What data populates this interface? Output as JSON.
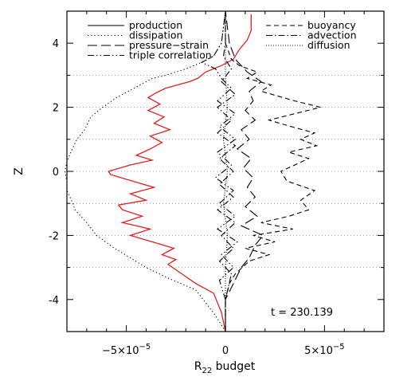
{
  "chart_data": {
    "type": "line",
    "xlabel": "R",
    "xlabel_sub": "22",
    "xlabel_suffix": " budget",
    "ylabel": "Z",
    "xlim": [
      -8e-05,
      8e-05
    ],
    "ylim": [
      -5,
      5
    ],
    "x_ticks": [
      {
        "value": -5e-05,
        "mantissa": "−5×10",
        "exp": "−5"
      },
      {
        "value": 0,
        "mantissa": "0",
        "exp": ""
      },
      {
        "value": 5e-05,
        "mantissa": "5×10",
        "exp": "−5"
      }
    ],
    "y_ticks": [
      -4,
      -2,
      0,
      2,
      4
    ],
    "dotted_gridlines_y": [
      -3,
      -2,
      -1,
      0,
      1,
      2,
      3
    ],
    "annotation": "t = 230.139",
    "legend_left": [
      "production",
      "dissipation",
      "pressure−strain",
      "triple correlation"
    ],
    "legend_right": [
      "buoyancy",
      "advection",
      "diffusion"
    ],
    "series": [
      {
        "name": "dissipation",
        "style": "dotted",
        "color": "#000000",
        "y": [
          -5,
          -4.5,
          -3.7,
          -3.3,
          -3.0,
          -2.7,
          -2.4,
          -2.0,
          -1.6,
          -1.2,
          -1.0,
          -0.6,
          -0.3,
          0.0,
          0.3,
          0.6,
          1.0,
          1.3,
          1.7,
          2.0,
          2.3,
          2.6,
          2.9,
          3.0,
          3.2,
          3.4,
          3.6,
          4.0,
          5.0
        ],
        "x": [
          0.0,
          -5e-06,
          -1.5e-05,
          -3e-05,
          -4e-05,
          -4.8e-05,
          -5.6e-05,
          -6.5e-05,
          -7e-05,
          -7.6e-05,
          -7.7e-05,
          -8e-05,
          -8e-05,
          -8.1e-05,
          -8e-05,
          -7.8e-05,
          -7.5e-05,
          -7.1e-05,
          -6.8e-05,
          -6.2e-05,
          -5.5e-05,
          -4.6e-05,
          -3.7e-05,
          -3e-05,
          -2e-05,
          -1.2e-05,
          -6e-06,
          -2e-06,
          0.0
        ]
      },
      {
        "name": "production",
        "style": "solid",
        "color": "#e02020",
        "y": [
          -5,
          -4.4,
          -3.8,
          -3.5,
          -3.2,
          -2.9,
          -2.75,
          -2.6,
          -2.4,
          -2.2,
          -2.0,
          -1.8,
          -1.6,
          -1.4,
          -1.2,
          -1.05,
          -0.9,
          -0.7,
          -0.5,
          -0.3,
          -0.1,
          0.0,
          0.2,
          0.35,
          0.5,
          0.7,
          0.9,
          1.1,
          1.3,
          1.5,
          1.7,
          1.9,
          2.1,
          2.3,
          2.45,
          2.6,
          2.8,
          2.9,
          3.1,
          3.3,
          3.5,
          3.8,
          4.1,
          4.4,
          4.7,
          4.9
        ],
        "x": [
          0.0,
          -2e-06,
          -6e-06,
          -1.5e-05,
          -2.2e-05,
          -2.9e-05,
          -2.5e-05,
          -3.2e-05,
          -2.6e-05,
          -3.7e-05,
          -4.8e-05,
          -3.8e-05,
          -5.2e-05,
          -4.2e-05,
          -5.2e-05,
          -5.4e-05,
          -4e-05,
          -4.8e-05,
          -3.6e-05,
          -4.7e-05,
          -5.8e-05,
          -5.9e-05,
          -4.8e-05,
          -3.7e-05,
          -4.5e-05,
          -3.8e-05,
          -3.2e-05,
          -3.8e-05,
          -2.8e-05,
          -3.6e-05,
          -3.1e-05,
          -3.9e-05,
          -3.3e-05,
          -3.9e-05,
          -3.5e-05,
          -3e-05,
          -1.8e-05,
          -1.4e-05,
          -1e-05,
          -2e-06,
          4e-06,
          7e-06,
          1.1e-05,
          1.3e-05,
          1.3e-05,
          1.3e-05
        ]
      },
      {
        "name": "buoyancy",
        "style": "dashed",
        "color": "#000000",
        "y": [
          -5,
          -4.0,
          -3.5,
          -3.2,
          -2.8,
          -2.6,
          -2.4,
          -2.2,
          -2.0,
          -1.8,
          -1.6,
          -1.4,
          -1.2,
          -0.9,
          -0.6,
          -0.3,
          0.0,
          0.4,
          0.6,
          0.8,
          1.0,
          1.2,
          1.4,
          1.6,
          1.8,
          2.0,
          2.2,
          2.5,
          2.7,
          2.9,
          3.1,
          3.3,
          3.5,
          4.0,
          5.0
        ],
        "x": [
          0.0,
          0.0,
          2e-06,
          5e-06,
          1.2e-05,
          2.2e-05,
          1e-05,
          2.5e-05,
          1.4e-05,
          3.4e-05,
          1.8e-05,
          3.2e-05,
          4.2e-05,
          3.8e-05,
          4.5e-05,
          3.1e-05,
          2.8e-05,
          4.2e-05,
          3.2e-05,
          4.6e-05,
          3.8e-05,
          4.5e-05,
          3.3e-05,
          2.2e-05,
          3.5e-05,
          4.8e-05,
          3.5e-05,
          1.8e-05,
          2.3e-05,
          1.1e-05,
          1.6e-05,
          7e-06,
          3e-06,
          0.0,
          0.0
        ]
      },
      {
        "name": "pressure−strain",
        "style": "longdash",
        "color": "#000000",
        "y": [
          -5,
          -4.0,
          -3.5,
          -3.0,
          -2.7,
          -2.3,
          -2.0,
          -1.7,
          -1.4,
          -1.1,
          -0.8,
          -0.5,
          -0.2,
          0.1,
          0.4,
          0.7,
          1.0,
          1.3,
          1.6,
          1.9,
          2.2,
          2.5,
          2.8,
          3.1,
          3.5,
          4.0,
          5.0
        ],
        "x": [
          0.0,
          0.0,
          4e-06,
          8e-06,
          1.2e-05,
          1.5e-05,
          1.9e-05,
          8e-06,
          1.6e-05,
          1e-05,
          1.5e-05,
          1.1e-05,
          1.4e-05,
          9e-06,
          1.3e-05,
          6e-06,
          1.2e-05,
          8e-06,
          1.5e-05,
          1e-05,
          1.4e-05,
          1.2e-05,
          1.8e-05,
          1.1e-05,
          5e-06,
          2e-06,
          0.0
        ]
      },
      {
        "name": "triple correlation",
        "style": "dashdotdot",
        "color": "#000000",
        "y": [
          -5,
          -4.0,
          -3.4,
          -3.0,
          -2.6,
          -2.2,
          -1.8,
          -1.4,
          -1.0,
          -0.6,
          -0.2,
          0.2,
          0.6,
          1.0,
          1.4,
          1.8,
          2.2,
          2.6,
          2.9,
          3.2,
          3.4,
          3.6,
          4.0,
          5.0
        ],
        "x": [
          0.0,
          0.0,
          -3e-06,
          4e-06,
          -2e-06,
          6e-06,
          -4e-06,
          5e-06,
          -3e-06,
          4e-06,
          -5e-06,
          3e-06,
          -4e-06,
          5e-06,
          -3e-06,
          5e-06,
          -4e-06,
          3e-06,
          -2e-06,
          -5e-06,
          -1.2e-05,
          -6e-06,
          -2e-06,
          0.0
        ]
      },
      {
        "name": "advection",
        "style": "dashdot",
        "color": "#000000",
        "y": [
          -5,
          -4.0,
          -3.2,
          -2.8,
          -2.4,
          -2.0,
          -1.6,
          -1.2,
          -0.8,
          -0.4,
          0.0,
          0.4,
          0.8,
          1.2,
          1.6,
          2.0,
          2.4,
          2.8,
          3.2,
          3.6,
          4.0,
          5.0
        ],
        "x": [
          0.0,
          0.0,
          3e-06,
          -3e-06,
          4e-06,
          -2e-06,
          5e-06,
          -4e-06,
          4e-06,
          -3e-06,
          4e-06,
          -3e-06,
          5e-06,
          -4e-06,
          3e-06,
          -4e-06,
          5e-06,
          -2e-06,
          3e-06,
          -1e-06,
          0.0,
          0.0
        ]
      },
      {
        "name": "diffusion",
        "style": "finedot",
        "color": "#000000",
        "y": [
          -5,
          -3.0,
          -2.0,
          -1.0,
          0.0,
          1.0,
          2.0,
          3.0,
          5.0
        ],
        "x": [
          0.0,
          0.0,
          1e-06,
          -1e-06,
          1e-06,
          -1e-06,
          1e-06,
          0.0,
          0.0
        ]
      }
    ]
  }
}
